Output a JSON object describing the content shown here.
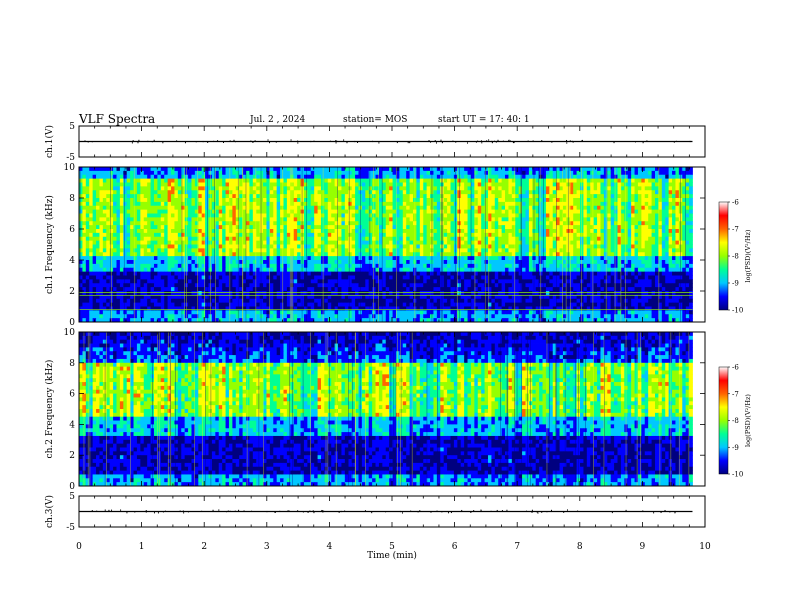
{
  "header": {
    "title": "VLF Spectra",
    "date": "Jul. 2 , 2024",
    "station": "station= MOS",
    "start": "start UT = 17: 40: 1"
  },
  "chart_data": [
    {
      "type": "line",
      "panel": "ch1-voltage",
      "ylabel": "ch.1(V)",
      "ylim": [
        -5,
        5
      ],
      "yticks": [
        "5",
        "-5"
      ],
      "x": [
        0,
        9.8
      ],
      "values": [
        0,
        0
      ],
      "color": "#000000"
    },
    {
      "type": "heatmap",
      "panel": "ch1-spectrogram",
      "ylabel": "ch.1 Frequency (kHz)",
      "ylim": [
        0,
        10
      ],
      "yticks": [
        "0",
        "2",
        "4",
        "6",
        "8",
        "10"
      ],
      "xlim": [
        0,
        10
      ],
      "data_extent_min": 9.8,
      "strong_band_khz": [
        4.2,
        9.3
      ],
      "colorbar": {
        "label": "log(PSD)(V²/Hz)",
        "ticks": [
          "-6",
          "-7",
          "-8",
          "-9",
          "-10"
        ],
        "range": [
          -10,
          -6
        ]
      }
    },
    {
      "type": "heatmap",
      "panel": "ch2-spectrogram",
      "ylabel": "ch.2 Frequency (kHz)",
      "ylim": [
        0,
        10
      ],
      "yticks": [
        "0",
        "2",
        "4",
        "6",
        "8",
        "10"
      ],
      "xlim": [
        0,
        10
      ],
      "data_extent_min": 9.8,
      "strong_band_khz": [
        4.5,
        8.0
      ],
      "colorbar": {
        "label": "log(PSD)(V²/Hz)",
        "ticks": [
          "-6",
          "-7",
          "-8",
          "-9",
          "-10"
        ],
        "range": [
          -10,
          -6
        ]
      }
    },
    {
      "type": "line",
      "panel": "ch3-voltage",
      "ylabel": "ch.3(V)",
      "ylim": [
        -5,
        5
      ],
      "yticks": [
        "5",
        "-5"
      ],
      "x": [
        0,
        9.8
      ],
      "values": [
        0,
        0
      ],
      "color": "#000000"
    }
  ],
  "xaxis": {
    "label": "Time (min)",
    "ticks": [
      "0",
      "1",
      "2",
      "3",
      "4",
      "5",
      "6",
      "7",
      "8",
      "9",
      "10"
    ],
    "range": [
      0,
      10
    ]
  },
  "colormap": [
    "#000080",
    "#0000ff",
    "#00c8ff",
    "#00ff96",
    "#96ff00",
    "#ffff00",
    "#ff6400",
    "#ff0000",
    "#ffffff"
  ]
}
